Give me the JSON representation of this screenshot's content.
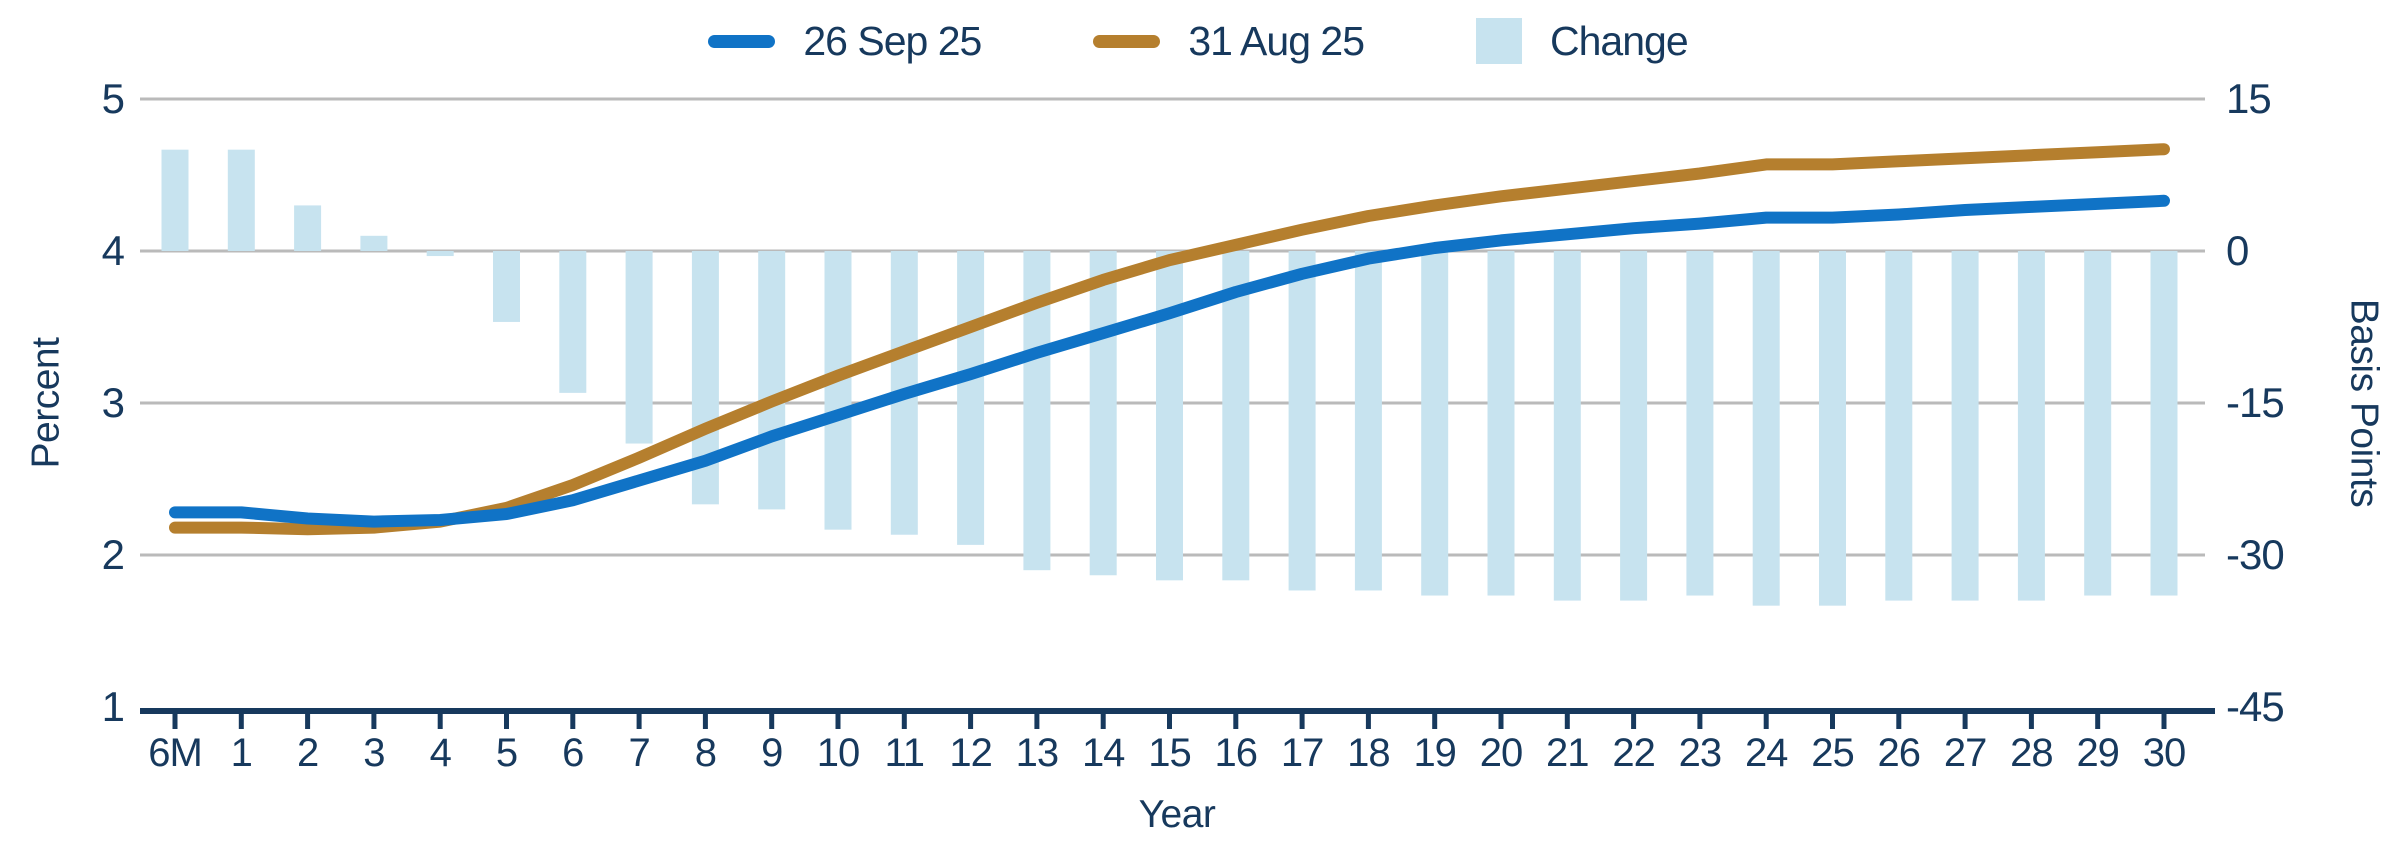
{
  "chart_data": {
    "type": "line+bar",
    "categories": [
      "6M",
      "1",
      "2",
      "3",
      "4",
      "5",
      "6",
      "7",
      "8",
      "9",
      "10",
      "11",
      "12",
      "13",
      "14",
      "15",
      "16",
      "17",
      "18",
      "19",
      "20",
      "21",
      "22",
      "23",
      "24",
      "25",
      "26",
      "27",
      "28",
      "29",
      "30"
    ],
    "series": [
      {
        "name": "26 Sep 25",
        "type": "line",
        "axis": "left",
        "color": "#1073C6",
        "values": [
          2.28,
          2.28,
          2.24,
          2.22,
          2.23,
          2.27,
          2.36,
          2.49,
          2.62,
          2.78,
          2.92,
          3.06,
          3.19,
          3.33,
          3.46,
          3.59,
          3.73,
          3.85,
          3.95,
          4.02,
          4.07,
          4.11,
          4.15,
          4.18,
          4.22,
          4.22,
          4.24,
          4.27,
          4.29,
          4.31,
          4.33
        ]
      },
      {
        "name": "31 Aug 25",
        "type": "line",
        "axis": "left",
        "color": "#B57F2E",
        "values": [
          2.18,
          2.18,
          2.17,
          2.18,
          2.22,
          2.31,
          2.46,
          2.64,
          2.83,
          3.01,
          3.18,
          3.34,
          3.5,
          3.66,
          3.81,
          3.94,
          4.04,
          4.14,
          4.23,
          4.3,
          4.36,
          4.41,
          4.46,
          4.51,
          4.57,
          4.57,
          4.59,
          4.61,
          4.63,
          4.65,
          4.67
        ]
      },
      {
        "name": "Change",
        "type": "bar",
        "axis": "right",
        "color": "#C7E3EF",
        "values": [
          10,
          10,
          4.5,
          1.5,
          -0.5,
          -7,
          -14,
          -19,
          -25,
          -25.5,
          -27.5,
          -28,
          -29,
          -31.5,
          -32,
          -32.5,
          -32.5,
          -33.5,
          -33.5,
          -34,
          -34,
          -34.5,
          -34.5,
          -34,
          -35,
          -35,
          -34.5,
          -34.5,
          -34.5,
          -34,
          -34
        ]
      }
    ],
    "left_axis": {
      "label": "Percent",
      "min": 1,
      "max": 5,
      "ticks": [
        "5",
        "4",
        "3",
        "2",
        "1"
      ],
      "tick_values": [
        5,
        4,
        3,
        2,
        1
      ]
    },
    "right_axis": {
      "label": "Basis Points",
      "min": -45,
      "max": 15,
      "ticks": [
        "15",
        "0",
        "-15",
        "-30",
        "-45"
      ],
      "tick_values": [
        15,
        0,
        -15,
        -30,
        -45
      ]
    },
    "x_axis": {
      "label": "Year"
    },
    "grid": true,
    "legend_position": "top",
    "colors": {
      "text": "#17395D",
      "grid": "#BABABA",
      "axis": "#17395D",
      "background": "#FFFFFF"
    }
  }
}
